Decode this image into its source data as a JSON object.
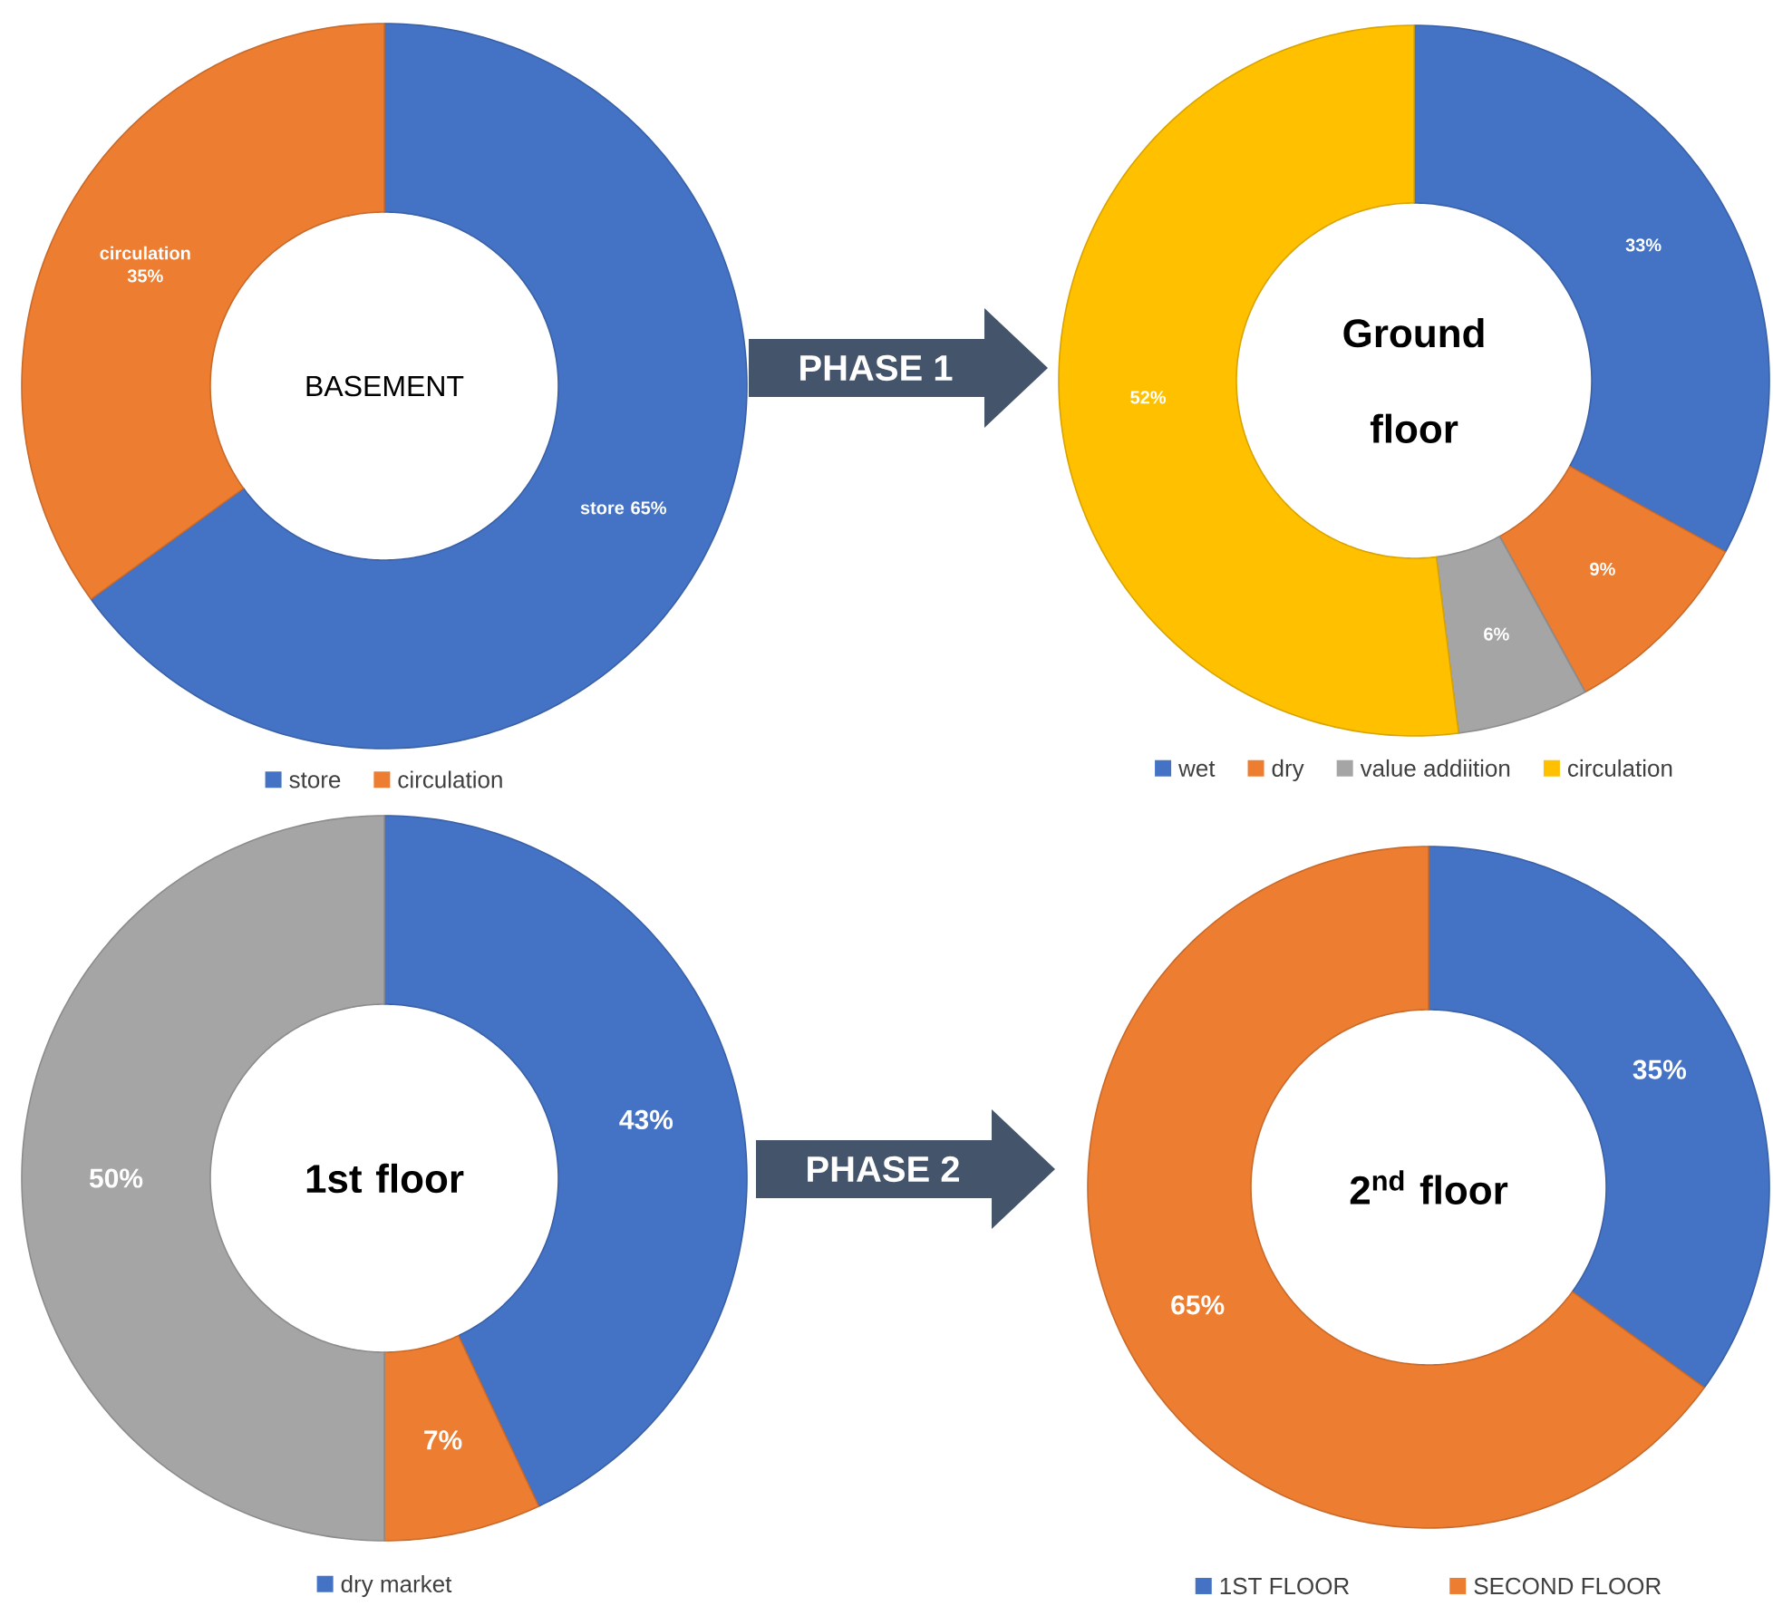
{
  "chart_data": [
    {
      "type": "donut",
      "title": "BASEMENT",
      "categories": [
        "store",
        "circulation"
      ],
      "values": [
        65,
        35
      ],
      "colors": [
        "#4472c4",
        "#ed7d31"
      ],
      "value_labels": [
        "store 65%",
        "circulation 35%"
      ],
      "legend": "bottom",
      "annotations": [
        "PHASE 1"
      ]
    },
    {
      "type": "donut",
      "title": "Ground floor",
      "categories": [
        "wet",
        "dry",
        "value addiition",
        "circulation"
      ],
      "values": [
        33,
        9,
        6,
        52
      ],
      "colors": [
        "#4472c4",
        "#ed7d31",
        "#a5a5a5",
        "#ffc000"
      ],
      "value_labels": [
        "33%",
        "9%",
        "6%",
        "52%"
      ],
      "legend": "bottom"
    },
    {
      "type": "donut",
      "title": "1st floor",
      "categories": [
        "dry market",
        null,
        null
      ],
      "values": [
        43,
        7,
        50
      ],
      "colors": [
        "#4472c4",
        "#ed7d31",
        "#a5a5a5"
      ],
      "value_labels": [
        "43%",
        "7%",
        "50%"
      ],
      "legend": "bottom",
      "annotations": [
        "PHASE 2"
      ]
    },
    {
      "type": "donut",
      "title": "2$^{nd}$ floor",
      "categories": [
        "1ST FLOOR",
        "SECOND FLOOR"
      ],
      "values": [
        35,
        65
      ],
      "colors": [
        "#4472c4",
        "#ed7d31"
      ],
      "value_labels": [
        "35%",
        "65%"
      ],
      "legend": "bottom"
    }
  ]
}
